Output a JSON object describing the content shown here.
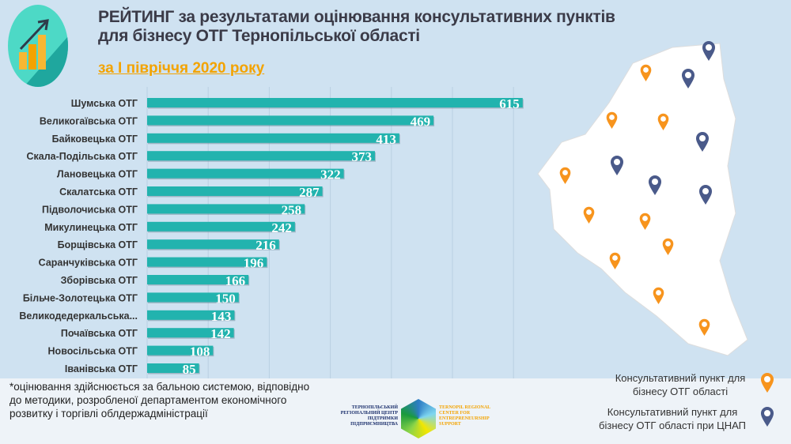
{
  "header": {
    "title": "РЕЙТИНГ за результатами оцінювання консультативних пунктів для бізнесу ОТГ Тернопільської області",
    "subtitle": "за І півріччя 2020 року"
  },
  "chart_data": {
    "type": "bar",
    "orientation": "horizontal",
    "categories": [
      "Шумська ОТГ",
      "Великогаївська ОТГ",
      "Байковецька ОТГ",
      "Скала-Подільська ОТГ",
      "Лановецька ОТГ",
      "Скалатська ОТГ",
      "Підволочиська ОТГ",
      "Микулинецька ОТГ",
      "Борщівська ОТГ",
      "Саранчуківська ОТГ",
      "Зборівська ОТГ",
      "Більче-Золотецька ОТГ",
      "Великодедеркальська...",
      "Почаївська ОТГ",
      "Новосільська ОТГ",
      "Іванівська ОТГ"
    ],
    "values": [
      615,
      469,
      413,
      373,
      322,
      287,
      258,
      242,
      216,
      196,
      166,
      150,
      143,
      142,
      108,
      85
    ],
    "xlim": [
      0,
      700
    ],
    "grid": true,
    "gridStep": 100,
    "barColor": "#22b3ae"
  },
  "footnote": "*оцінювання здійснюється за бальною системою, відповідно до методики, розробленої департаментом економічного розвитку і торгівлі облдержадміністрації",
  "partner": {
    "ua": "ТЕРНОПІЛЬСЬКИЙ РЕГІОНАЛЬНИЙ ЦЕНТР ПІДТРИМКИ ПІДПРИЄМНИЦТВА",
    "en": "TERNOPIL REGIONAL CENTER FOR ENTREPRENEURSHIP SUPPORT"
  },
  "legend": [
    {
      "label": "Консультативний пункт для бізнесу ОТГ області",
      "color": "#f7941d"
    },
    {
      "label": "Консультативний пункт для бізнесу ОТГ області при ЦНАП",
      "color": "#4a5a8a"
    }
  ],
  "colors": {
    "orange": "#f7941d",
    "navy": "#4a5a8a"
  }
}
